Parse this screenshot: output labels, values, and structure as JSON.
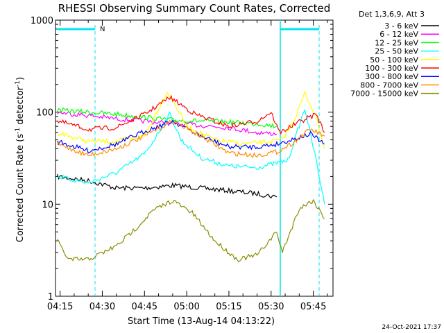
{
  "chart_data": {
    "type": "line",
    "title": "RHESSI Observing Summary Count Rates, Corrected",
    "xlabel": "Start Time (13-Aug-14 04:13:22)",
    "ylabel": "Corrected Count Rate (s",
    "ylabel_sup1": "-1",
    "ylabel_mid": " detector",
    "ylabel_sup2": "-1",
    "ylabel_end": ")",
    "y_scale": "log",
    "ylim": [
      1,
      1000
    ],
    "xlim": [
      "04:13:22",
      "05:52:00"
    ],
    "x_ticks": [
      "04:15",
      "04:30",
      "04:45",
      "05:00",
      "05:15",
      "05:30",
      "05:45"
    ],
    "y_ticks": [
      "1",
      "10",
      "100",
      "1000"
    ],
    "legend_header": "Det 1,3,6,9, Att 3",
    "legend_position": "top-right",
    "timestamp": "24-Oct-2021 17:37",
    "flag_label": "N",
    "series": [
      {
        "name": "3 - 6 keV",
        "color": "#000000",
        "x": [
          "04:14",
          "04:25",
          "04:35",
          "04:45",
          "04:55",
          "05:05",
          "05:15",
          "05:25",
          "05:32"
        ],
        "y": [
          20,
          18,
          15,
          15,
          16,
          15,
          14,
          13,
          12
        ]
      },
      {
        "name": "6 - 12 keV",
        "color": "#ff00ff",
        "x": [
          "04:14",
          "04:25",
          "04:35",
          "04:45",
          "04:55",
          "05:05",
          "05:15",
          "05:25",
          "05:32"
        ],
        "y": [
          100,
          92,
          85,
          80,
          75,
          72,
          68,
          60,
          58
        ]
      },
      {
        "name": "12 - 25 keV",
        "color": "#00ff00",
        "x": [
          "04:14",
          "04:25",
          "04:35",
          "04:45",
          "04:55",
          "05:05",
          "05:15",
          "05:25",
          "05:32"
        ],
        "y": [
          105,
          100,
          95,
          88,
          82,
          80,
          78,
          75,
          70
        ]
      },
      {
        "name": "25 - 50 keV",
        "color": "#00ffff",
        "x": [
          "04:14",
          "04:25",
          "04:35",
          "04:45",
          "04:50",
          "04:54",
          "04:58",
          "05:05",
          "05:15",
          "05:25",
          "05:32",
          "05:36",
          "05:42",
          "05:46",
          "05:49"
        ],
        "y": [
          20,
          17,
          22,
          35,
          60,
          95,
          50,
          32,
          26,
          25,
          28,
          30,
          110,
          30,
          10
        ]
      },
      {
        "name": "50 - 100 keV",
        "color": "#ffff00",
        "x": [
          "04:14",
          "04:25",
          "04:35",
          "04:45",
          "04:50",
          "04:53",
          "04:56",
          "05:00",
          "05:10",
          "05:20",
          "05:30",
          "05:34",
          "05:38",
          "05:42",
          "05:46",
          "05:49"
        ],
        "y": [
          60,
          48,
          48,
          55,
          110,
          165,
          120,
          70,
          50,
          45,
          48,
          50,
          80,
          160,
          90,
          40
        ]
      },
      {
        "name": "100 - 300 keV",
        "color": "#ff0000",
        "x": [
          "04:14",
          "04:25",
          "04:35",
          "04:45",
          "04:54",
          "05:03",
          "05:15",
          "05:25",
          "05:30",
          "05:33",
          "05:40",
          "05:46",
          "05:49"
        ],
        "y": [
          80,
          65,
          68,
          95,
          145,
          95,
          70,
          80,
          100,
          60,
          78,
          95,
          60
        ]
      },
      {
        "name": "300 - 800 keV",
        "color": "#0000ff",
        "x": [
          "04:14",
          "04:25",
          "04:35",
          "04:45",
          "04:55",
          "05:05",
          "05:15",
          "05:25",
          "05:32",
          "05:37",
          "05:44",
          "05:49"
        ],
        "y": [
          48,
          38,
          45,
          62,
          80,
          55,
          42,
          42,
          45,
          50,
          58,
          45
        ]
      },
      {
        "name": "800 - 7000 keV",
        "color": "#ff8c00",
        "x": [
          "04:14",
          "04:25",
          "04:35",
          "04:45",
          "04:55",
          "05:05",
          "05:15",
          "05:25",
          "05:32",
          "05:37",
          "05:44",
          "05:49"
        ],
        "y": [
          45,
          34,
          40,
          55,
          80,
          55,
          36,
          34,
          37,
          45,
          65,
          55
        ]
      },
      {
        "name": "7000 - 15000 keV",
        "color": "#8b8b00",
        "x": [
          "04:14",
          "04:18",
          "04:25",
          "04:35",
          "04:42",
          "04:48",
          "04:55",
          "05:02",
          "05:10",
          "05:18",
          "05:25",
          "05:32",
          "05:34",
          "05:40",
          "05:45",
          "05:49"
        ],
        "y": [
          4,
          2.5,
          2.5,
          3.5,
          5.5,
          8.5,
          11,
          8,
          4,
          2.5,
          2.8,
          5,
          3,
          9,
          11,
          7
        ]
      }
    ]
  }
}
